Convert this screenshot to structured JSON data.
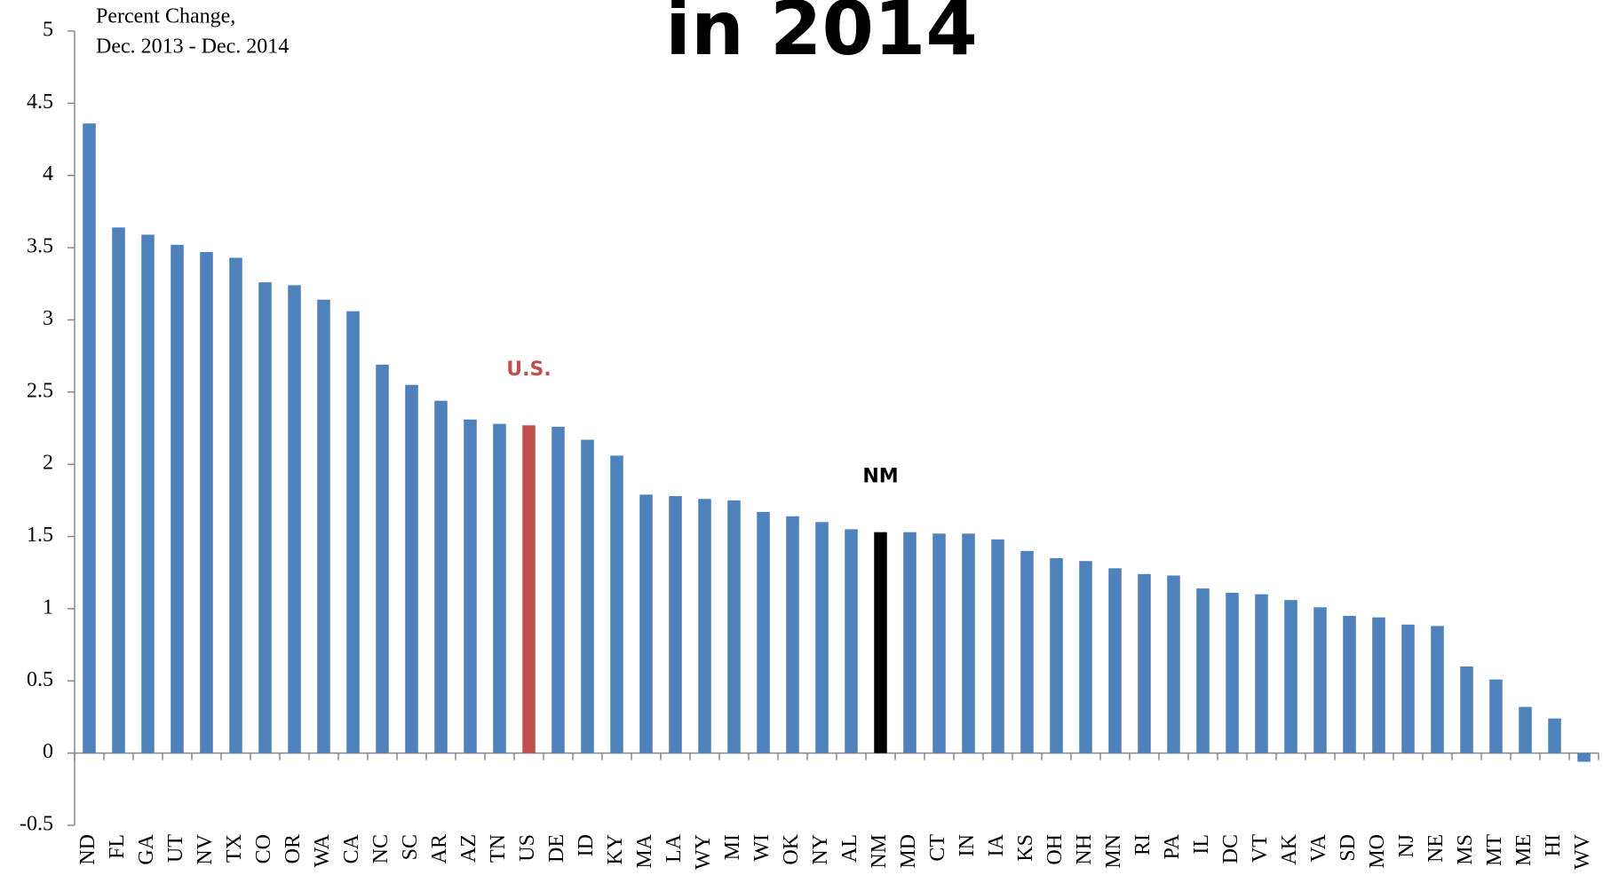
{
  "chart_data": {
    "type": "bar",
    "title": "in 2014",
    "y_label": [
      "Percent Change,",
      "Dec. 2013 - Dec. 2014"
    ],
    "categories": [
      "ND",
      "FL",
      "GA",
      "UT",
      "NV",
      "TX",
      "CO",
      "OR",
      "WA",
      "CA",
      "NC",
      "SC",
      "AR",
      "AZ",
      "TN",
      "US",
      "DE",
      "ID",
      "KY",
      "MA",
      "LA",
      "WY",
      "MI",
      "WI",
      "OK",
      "NY",
      "AL",
      "NM",
      "MD",
      "CT",
      "IN",
      "IA",
      "KS",
      "OH",
      "NH",
      "MN",
      "RI",
      "PA",
      "IL",
      "DC",
      "VT",
      "AK",
      "VA",
      "SD",
      "MO",
      "NJ",
      "NE",
      "MS",
      "MT",
      "ME",
      "HI",
      "WV"
    ],
    "values": [
      4.36,
      3.64,
      3.59,
      3.52,
      3.47,
      3.43,
      3.26,
      3.24,
      3.14,
      3.06,
      2.69,
      2.55,
      2.44,
      2.31,
      2.28,
      2.27,
      2.26,
      2.17,
      2.06,
      1.79,
      1.78,
      1.76,
      1.75,
      1.67,
      1.64,
      1.6,
      1.55,
      1.53,
      1.53,
      1.52,
      1.52,
      1.48,
      1.4,
      1.35,
      1.33,
      1.28,
      1.24,
      1.23,
      1.14,
      1.11,
      1.1,
      1.06,
      1.01,
      0.95,
      0.94,
      0.89,
      0.88,
      0.6,
      0.51,
      0.32,
      0.24,
      -0.06
    ],
    "color": "#4f81bd",
    "highlights": [
      {
        "category": "US",
        "color": "#c0504d",
        "label": "U.S."
      },
      {
        "category": "NM",
        "color": "#000000",
        "label": "NM"
      }
    ],
    "ylim": [
      -0.5,
      5
    ],
    "yticks": [
      -0.5,
      0,
      0.5,
      1,
      1.5,
      2,
      2.5,
      3,
      3.5,
      4,
      4.5,
      5
    ],
    "grid": false
  }
}
